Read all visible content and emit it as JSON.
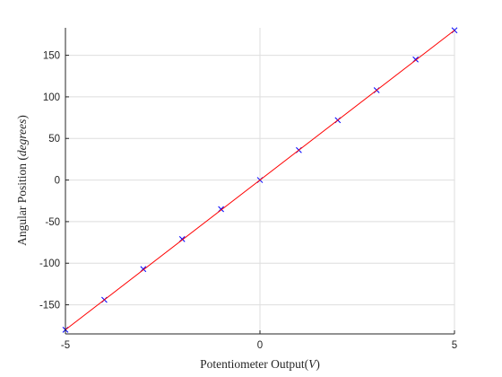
{
  "chart_data": {
    "type": "scatter",
    "xlabel": "Potentiometer Output",
    "xlabel_unit": "V",
    "ylabel": "Angular Position ",
    "ylabel_unit": "degrees",
    "xlim": [
      -5,
      5
    ],
    "ylim": [
      -185,
      183
    ],
    "x_ticks": [
      -5,
      0,
      5
    ],
    "y_ticks": [
      -150,
      -100,
      -50,
      0,
      50,
      100,
      150
    ],
    "x_tick_labels": [
      "-5",
      "0",
      "5"
    ],
    "y_tick_labels": [
      "-150",
      "-100",
      "-50",
      "0",
      "50",
      "100",
      "150"
    ],
    "grid": true,
    "series": [
      {
        "marker": "x",
        "color": "#0000ff",
        "x": [
          -5,
          -4,
          -3,
          -2,
          -1,
          0,
          1,
          2,
          3,
          4,
          5
        ],
        "y": [
          -180,
          -144,
          -107,
          -71,
          -35,
          0,
          36,
          72,
          108,
          145,
          180
        ]
      },
      {
        "style": "line",
        "color": "#ff0000",
        "x": [
          -5,
          5
        ],
        "y": [
          -180,
          180
        ]
      }
    ]
  }
}
